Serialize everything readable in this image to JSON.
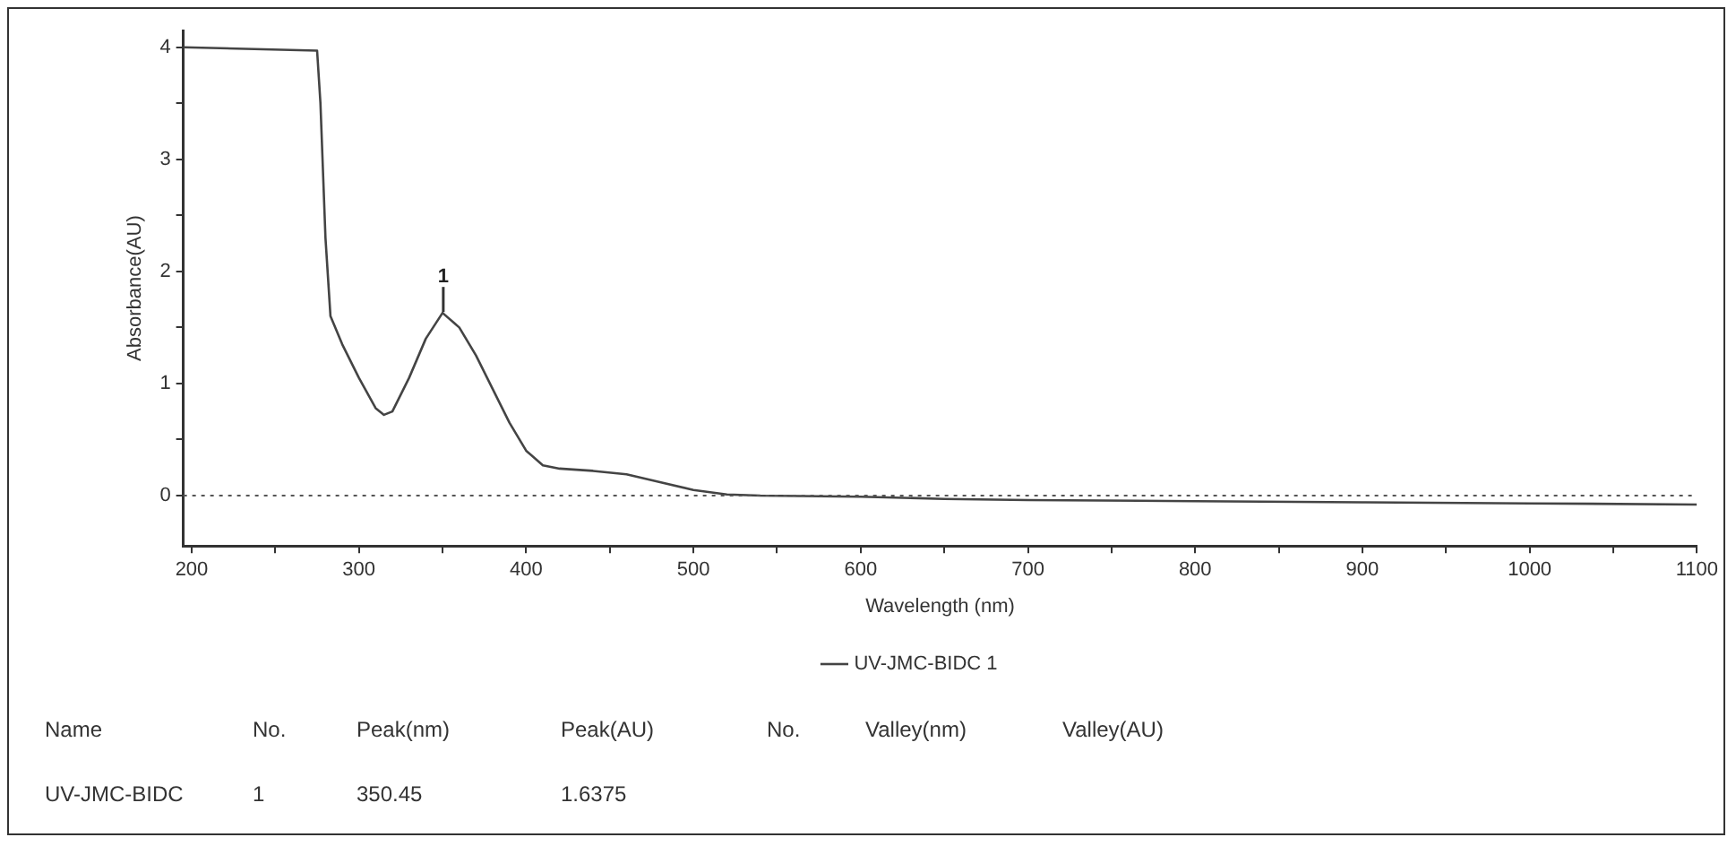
{
  "chart_data": {
    "type": "line",
    "xlabel": "Wavelength (nm)",
    "ylabel": "Absorbance(AU)",
    "x": [
      195,
      275,
      277,
      280,
      283,
      290,
      300,
      310,
      315,
      320,
      330,
      340,
      350,
      360,
      370,
      380,
      390,
      400,
      410,
      420,
      440,
      460,
      480,
      500,
      520,
      540,
      600,
      650,
      700,
      800,
      900,
      1000,
      1100
    ],
    "series": [
      {
        "name": "UV-JMC-BIDC 1",
        "color": "#444444",
        "values": [
          4.0,
          3.97,
          3.5,
          2.3,
          1.6,
          1.35,
          1.05,
          0.78,
          0.72,
          0.75,
          1.05,
          1.4,
          1.63,
          1.5,
          1.25,
          0.95,
          0.65,
          0.4,
          0.27,
          0.24,
          0.22,
          0.19,
          0.12,
          0.05,
          0.01,
          0,
          -0.01,
          -0.03,
          -0.04,
          -0.05,
          -0.06,
          -0.07,
          -0.08
        ]
      }
    ],
    "xlim": [
      195,
      1100
    ],
    "ylim": [
      -0.45,
      4.15
    ],
    "xticks": [
      200,
      {
        "value": 250,
        "label": null
      },
      300,
      {
        "value": 350,
        "label": null
      },
      400,
      {
        "value": 450,
        "label": null
      },
      500,
      {
        "value": 550,
        "label": null
      },
      600,
      {
        "value": 650,
        "label": null
      },
      700,
      {
        "value": 750,
        "label": null
      },
      800,
      {
        "value": 850,
        "label": null
      },
      900,
      {
        "value": 950,
        "label": null
      },
      1000,
      {
        "value": 1050,
        "label": null
      },
      1100
    ],
    "yticks": [
      0,
      {
        "value": 0.5,
        "label": null
      },
      1,
      {
        "value": 1.5,
        "label": null
      },
      2,
      {
        "value": 2.5,
        "label": null
      },
      3,
      {
        "value": 3.5,
        "label": null
      },
      4
    ],
    "ref_lines": [
      {
        "axis": "y",
        "value": 0,
        "color": "#555555",
        "line_style": "dotted"
      }
    ],
    "annotations": [
      {
        "text": "1",
        "x": 350.45,
        "y": 1.6375
      },
      "Name",
      "No.",
      "Peak(nm)",
      "Peak(AU)",
      "No.",
      "Valley(nm)",
      "Valley(AU)",
      "UV-JMC-BIDC",
      "1",
      "350.45",
      "1.6375"
    ],
    "grid": false,
    "legend": "bottom",
    "marker": "none",
    "line_style": "solid"
  }
}
